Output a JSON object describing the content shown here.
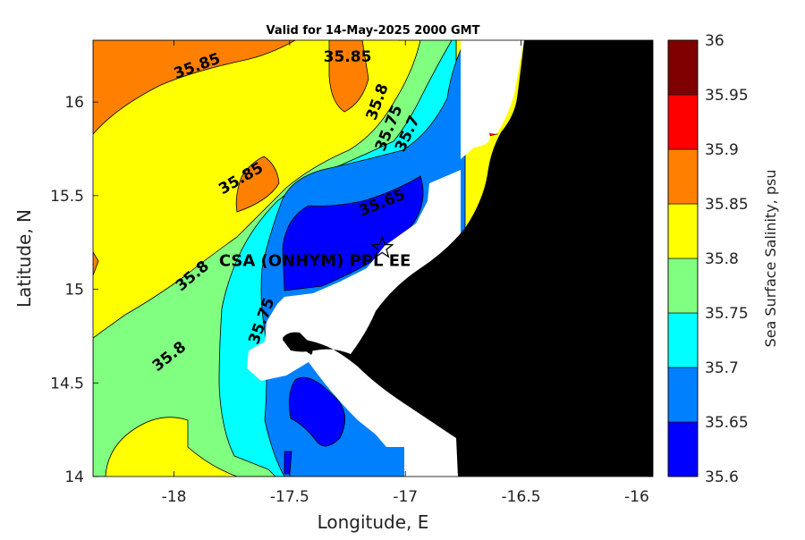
{
  "chart_data": {
    "type": "contour map",
    "title": "Valid for 14-May-2025 2000 GMT",
    "xlabel": "Longitude, E",
    "ylabel": "Latitude, N",
    "xlim": [
      -18.35,
      -15.93
    ],
    "ylim": [
      14.0,
      16.33
    ],
    "x_ticks": [
      -18,
      -17.5,
      -17,
      -16.5,
      -16
    ],
    "x_tick_labels": [
      "-18",
      "-17.5",
      "-17",
      "-16.5",
      "-16"
    ],
    "y_ticks": [
      14,
      14.5,
      15,
      15.5,
      16
    ],
    "y_tick_labels": [
      "14",
      "14.5",
      "15",
      "15.5",
      "16"
    ],
    "colorbar": {
      "label": "Sea Surface Salinity, psu",
      "levels": [
        35.6,
        35.65,
        35.7,
        35.75,
        35.8,
        35.85,
        35.9,
        35.95,
        36.0
      ],
      "tick_labels": [
        "35.6",
        "35.65",
        "35.7",
        "35.75",
        "35.8",
        "35.85",
        "35.9",
        "35.95",
        "36"
      ],
      "colors": [
        "#0000ff",
        "#0080ff",
        "#00ffff",
        "#80ff80",
        "#ffff00",
        "#ff8000",
        "#ff0000",
        "#800000"
      ]
    },
    "contour_labels": [
      {
        "text": "35.85",
        "lon": -17.9,
        "lat": 16.19
      },
      {
        "text": "35.85",
        "lon": -17.25,
        "lat": 16.24
      },
      {
        "text": "35.8",
        "lon": -17.12,
        "lat": 16.0
      },
      {
        "text": "35.75",
        "lon": -17.07,
        "lat": 15.86
      },
      {
        "text": "35.7",
        "lon": -16.99,
        "lat": 15.83
      },
      {
        "text": "35.85",
        "lon": -17.71,
        "lat": 15.59
      },
      {
        "text": "35.65",
        "lon": -17.1,
        "lat": 15.46
      },
      {
        "text": "35.8",
        "lon": -17.92,
        "lat": 15.07
      },
      {
        "text": "35.75",
        "lon": -17.62,
        "lat": 14.83
      },
      {
        "text": "35.8",
        "lon": -18.02,
        "lat": 14.64
      }
    ],
    "site": {
      "name": "CSA (ONHYM) PPL EE",
      "lon": -17.1,
      "lat": 15.22
    }
  }
}
